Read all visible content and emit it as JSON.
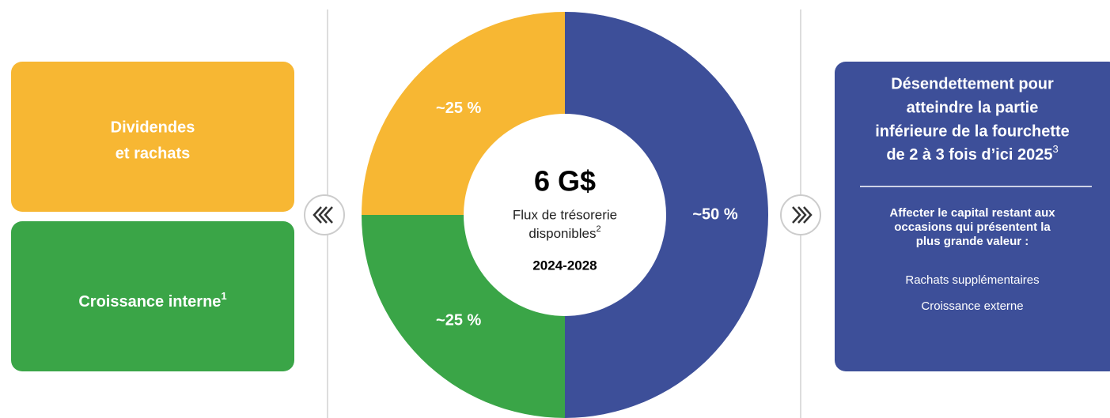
{
  "chart_data": {
    "type": "pie",
    "donut": true,
    "values": [
      50,
      25,
      25
    ],
    "value_labels": [
      "~50 %",
      "~25 %",
      "~25 %"
    ],
    "colors": [
      "#3d4f99",
      "#3aa547",
      "#f7b733"
    ],
    "center": {
      "title": "6 G$",
      "line1": "Flux de trésorerie",
      "line2": "disponibles",
      "line2_sup": "2",
      "period": "2024-2028"
    }
  },
  "left_boxes": [
    {
      "lines": [
        "Dividendes",
        "et rachats"
      ],
      "color": "#f7b733"
    },
    {
      "text": "Croissance interne",
      "sup": "1",
      "color": "#3aa547"
    }
  ],
  "right_box": {
    "color": "#3d4f99",
    "heading": [
      "Désendettement pour",
      "atteindre la partie",
      "inférieure de la fourchette",
      "de 2 à 3 fois d’ici 2025"
    ],
    "heading_sup": "3",
    "intro": [
      "Affecter le capital restant aux",
      "occasions qui présentent la",
      "plus grande valeur :"
    ],
    "items": [
      "Rachats supplémentaires",
      "Croissance externe"
    ]
  }
}
